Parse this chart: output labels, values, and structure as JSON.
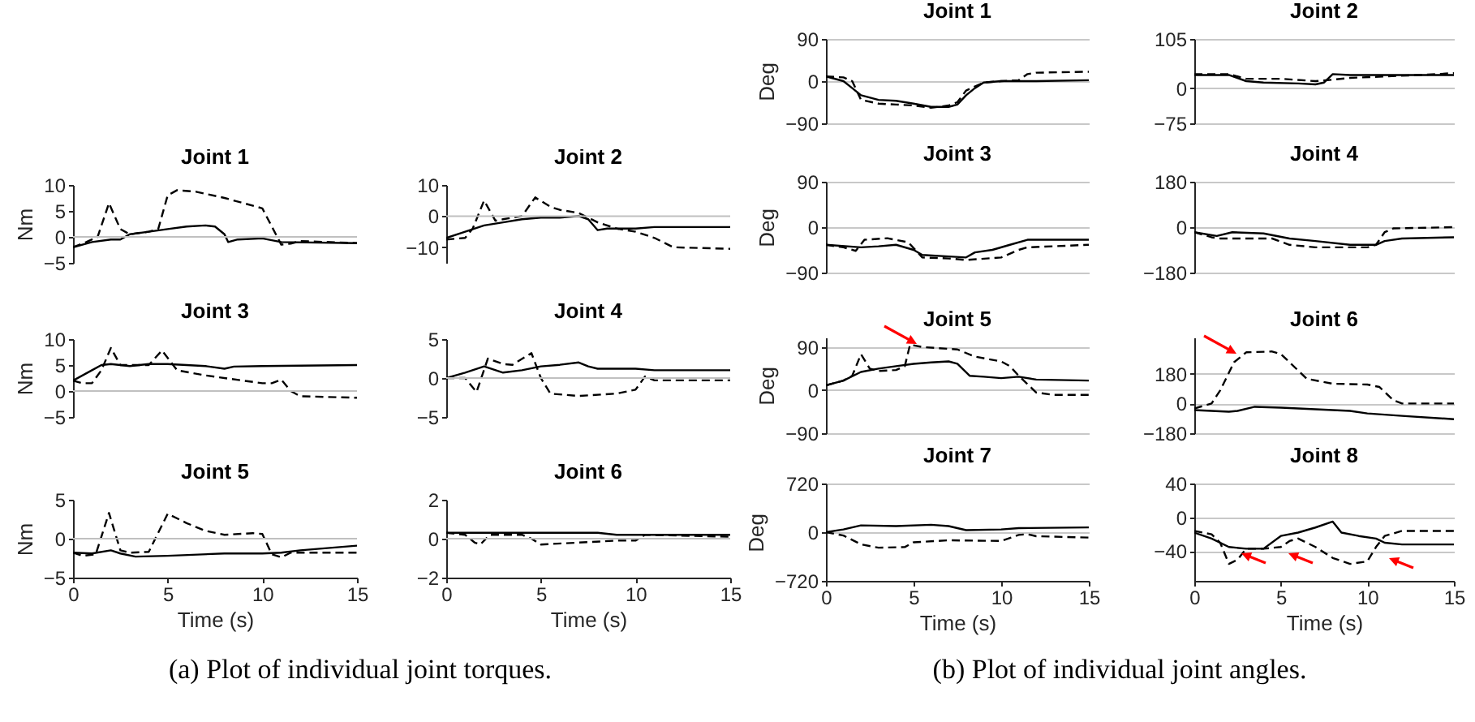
{
  "chart_data": [
    {
      "type": "line",
      "title": "Joint 1",
      "ylabel": "Nm",
      "xlim": [
        0,
        15
      ],
      "xticks": [
        0,
        5,
        10,
        15
      ],
      "ylim": [
        -5,
        10
      ],
      "yticks": [
        -5,
        0,
        5,
        10
      ],
      "tick_labels": "y",
      "ref_lines": [
        {
          "axis": "y",
          "value": 0,
          "color": "#c0c0c0"
        }
      ],
      "series": [
        {
          "color": "#000000",
          "line_style": "solid",
          "x": [
            0,
            1,
            2,
            2.5,
            3,
            4,
            5,
            6,
            7,
            7.5,
            8,
            8.2,
            8.7,
            10,
            11,
            15
          ],
          "values": [
            -2,
            -1,
            -0.5,
            -0.5,
            0.5,
            1,
            1.5,
            2,
            2.2,
            2,
            0.5,
            -1,
            -0.5,
            -0.3,
            -1,
            -1.2
          ]
        },
        {
          "color": "#000000",
          "line_style": "dashed",
          "x": [
            0,
            0.7,
            1.3,
            1.9,
            2.5,
            3,
            4,
            4.5,
            5,
            5.5,
            6.5,
            8,
            10,
            10.5,
            11,
            11.5,
            12,
            15
          ],
          "values": [
            -2,
            -1,
            0,
            6.5,
            1.5,
            0.5,
            1,
            1.5,
            8,
            9,
            8.7,
            7.5,
            5.5,
            2,
            -1.5,
            -1.3,
            -0.8,
            -1.2
          ]
        }
      ]
    },
    {
      "type": "line",
      "title": "Joint 2",
      "xlim": [
        0,
        15
      ],
      "xticks": [
        0,
        5,
        10,
        15
      ],
      "ylim": [
        -15,
        10
      ],
      "yticks": [
        -10,
        0,
        10
      ],
      "tick_labels": "y",
      "ref_lines": [
        {
          "axis": "y",
          "value": 0,
          "color": "#c0c0c0"
        }
      ],
      "series": [
        {
          "color": "#000000",
          "line_style": "solid",
          "x": [
            0,
            1,
            2,
            3,
            4,
            5,
            6,
            7,
            7.5,
            8,
            8.5,
            10,
            11,
            15
          ],
          "values": [
            -7,
            -5,
            -3,
            -2,
            -1,
            -0.5,
            -0.5,
            0,
            -1,
            -4.5,
            -4,
            -4,
            -3.5,
            -3.5
          ]
        },
        {
          "color": "#000000",
          "line_style": "dashed",
          "x": [
            0,
            1,
            1.4,
            2,
            2.6,
            3,
            4,
            4.7,
            5.5,
            6,
            7,
            8,
            9,
            10,
            11,
            12,
            15
          ],
          "values": [
            -7.5,
            -7,
            -4,
            5,
            -1.5,
            -1,
            0,
            6,
            3,
            2,
            1,
            -2,
            -4,
            -5,
            -7,
            -10,
            -10.5
          ]
        }
      ]
    },
    {
      "type": "line",
      "title": "Joint 3",
      "ylabel": "Nm",
      "xlim": [
        0,
        15
      ],
      "xticks": [
        0,
        5,
        10,
        15
      ],
      "ylim": [
        -5,
        10
      ],
      "yticks": [
        -5,
        0,
        5,
        10
      ],
      "tick_labels": "y",
      "ref_lines": [
        {
          "axis": "y",
          "value": 0,
          "color": "#c0c0c0"
        }
      ],
      "series": [
        {
          "color": "#000000",
          "line_style": "solid",
          "x": [
            0,
            1,
            1.5,
            2,
            3,
            4,
            5,
            6,
            7,
            8,
            8.5,
            10,
            15
          ],
          "values": [
            2,
            4,
            5,
            5.2,
            4.8,
            5.2,
            5.2,
            5,
            4.8,
            4.3,
            4.7,
            4.8,
            5
          ]
        },
        {
          "color": "#000000",
          "line_style": "dashed",
          "x": [
            0,
            0.5,
            1,
            1.5,
            2,
            2.5,
            3,
            4,
            4.7,
            5.5,
            7,
            9,
            10,
            10.5,
            11,
            11.5,
            12,
            15
          ],
          "values": [
            2,
            1.5,
            1.5,
            4,
            8.3,
            5,
            5,
            5,
            7.8,
            4,
            3,
            2,
            1.5,
            1.5,
            2.2,
            0,
            -1,
            -1.3
          ]
        }
      ]
    },
    {
      "type": "line",
      "title": "Joint 4",
      "xlim": [
        0,
        15
      ],
      "xticks": [
        0,
        5,
        10,
        15
      ],
      "ylim": [
        -5,
        5
      ],
      "yticks": [
        -5,
        0,
        5
      ],
      "tick_labels": "y",
      "ref_lines": [
        {
          "axis": "y",
          "value": 0,
          "color": "#c0c0c0"
        }
      ],
      "series": [
        {
          "color": "#000000",
          "line_style": "solid",
          "x": [
            0,
            1,
            2,
            3,
            4,
            5,
            6,
            7,
            7.5,
            8,
            10,
            11,
            15
          ],
          "values": [
            0,
            0.7,
            1.5,
            0.7,
            1,
            1.5,
            1.7,
            2,
            1.5,
            1.2,
            1.2,
            1,
            1
          ]
        },
        {
          "color": "#000000",
          "line_style": "dashed",
          "x": [
            0,
            1,
            1.6,
            2.2,
            3,
            3.5,
            4.5,
            5,
            5.5,
            7,
            9,
            10,
            10.5,
            11,
            15
          ],
          "values": [
            0,
            0,
            -1.8,
            2.5,
            1.8,
            1.7,
            3.2,
            0,
            -2,
            -2.3,
            -2,
            -1.5,
            0.2,
            -0.3,
            -0.3
          ]
        }
      ]
    },
    {
      "type": "line",
      "title": "Joint 5",
      "ylabel": "Nm",
      "xlabel": "Time (s)",
      "xlim": [
        0,
        15
      ],
      "xticks": [
        0,
        5,
        10,
        15
      ],
      "ylim": [
        -5,
        5
      ],
      "yticks": [
        -5,
        0,
        5
      ],
      "ref_lines": [
        {
          "axis": "y",
          "value": 0,
          "color": "#c0c0c0"
        }
      ],
      "annotations": [
        "(a) Plot of individual joint torques."
      ],
      "series": [
        {
          "color": "#000000",
          "line_style": "solid",
          "x": [
            0,
            1,
            2,
            2.5,
            3.3,
            5,
            8,
            10,
            11,
            12,
            15
          ],
          "values": [
            -1.8,
            -1.9,
            -1.5,
            -1.9,
            -2.3,
            -2.2,
            -1.9,
            -1.9,
            -1.8,
            -1.5,
            -0.9
          ]
        },
        {
          "color": "#000000",
          "line_style": "dashed",
          "x": [
            0,
            0.5,
            1.2,
            1.9,
            2.5,
            3,
            4,
            5,
            6,
            7,
            8,
            9.5,
            10,
            10.5,
            11,
            11.5,
            15
          ],
          "values": [
            -1.8,
            -2.2,
            -2,
            3.3,
            -1.5,
            -1.8,
            -1.7,
            3.2,
            2,
            1,
            0.5,
            0.7,
            0.6,
            -2,
            -2.4,
            -1.8,
            -1.8
          ]
        }
      ]
    },
    {
      "type": "line",
      "title": "Joint 6",
      "xlabel": "Time (s)",
      "xlim": [
        0,
        15
      ],
      "xticks": [
        0,
        5,
        10,
        15
      ],
      "ylim": [
        -2,
        2
      ],
      "yticks": [
        -2,
        0,
        2
      ],
      "ref_lines": [
        {
          "axis": "y",
          "value": 0,
          "color": "#c0c0c0"
        }
      ],
      "series": [
        {
          "color": "#000000",
          "line_style": "solid",
          "x": [
            0,
            5,
            8,
            9,
            15
          ],
          "values": [
            0.3,
            0.3,
            0.3,
            0.2,
            0.2
          ]
        },
        {
          "color": "#000000",
          "line_style": "dashed",
          "x": [
            0,
            1,
            1.5,
            1.8,
            2.3,
            4,
            4.5,
            5,
            7,
            9,
            10,
            10.5,
            15
          ],
          "values": [
            0.3,
            0.2,
            -0.2,
            -0.3,
            0.2,
            0.2,
            0,
            -0.3,
            -0.2,
            -0.1,
            -0.1,
            0.2,
            0.1
          ]
        }
      ]
    },
    {
      "type": "line",
      "title": "Joint 1",
      "ylabel": "Deg",
      "xlim": [
        0,
        15
      ],
      "xticks": [
        0,
        5,
        10,
        15
      ],
      "ylim": [
        -90,
        90
      ],
      "yticks": [
        -90,
        0,
        90
      ],
      "tick_labels": "y",
      "grid": "y",
      "series": [
        {
          "color": "#000000",
          "line_style": "solid",
          "x": [
            0,
            1,
            1.5,
            2,
            3,
            4,
            5,
            6,
            7,
            7.5,
            8,
            8.5,
            9,
            10,
            12,
            15
          ],
          "values": [
            10,
            0,
            -15,
            -30,
            -40,
            -42,
            -48,
            -55,
            -55,
            -50,
            -30,
            -15,
            -3,
            0,
            0,
            2
          ]
        },
        {
          "color": "#000000",
          "line_style": "dashed",
          "x": [
            0,
            1,
            1.5,
            2,
            3,
            4,
            5,
            6,
            7,
            7.5,
            8,
            9,
            10,
            11,
            11.5,
            12,
            15
          ],
          "values": [
            10,
            8,
            0,
            -40,
            -48,
            -50,
            -52,
            -57,
            -52,
            -45,
            -20,
            -3,
            0,
            2,
            15,
            18,
            20
          ]
        }
      ]
    },
    {
      "type": "line",
      "title": "Joint 2",
      "xlim": [
        0,
        15
      ],
      "xticks": [
        0,
        5,
        10,
        15
      ],
      "ylim": [
        -75,
        105
      ],
      "yticks": [
        -75,
        0,
        105
      ],
      "tick_labels": "y",
      "grid": "y",
      "series": [
        {
          "color": "#000000",
          "line_style": "solid",
          "x": [
            0,
            2,
            3,
            4,
            6,
            7,
            7.5,
            8,
            9,
            11,
            15
          ],
          "values": [
            28,
            28,
            15,
            12,
            10,
            8,
            12,
            30,
            28,
            28,
            28
          ]
        },
        {
          "color": "#000000",
          "line_style": "dashed",
          "x": [
            0,
            2,
            3,
            5,
            7,
            8,
            9,
            11,
            13,
            15
          ],
          "values": [
            30,
            30,
            20,
            20,
            15,
            18,
            22,
            25,
            28,
            32
          ]
        }
      ]
    },
    {
      "type": "line",
      "title": "Joint 3",
      "ylabel": "Deg",
      "xlim": [
        0,
        15
      ],
      "xticks": [
        0,
        5,
        10,
        15
      ],
      "ylim": [
        -90,
        90
      ],
      "yticks": [
        -90,
        0,
        90
      ],
      "tick_labels": "y",
      "grid": "y",
      "series": [
        {
          "color": "#000000",
          "line_style": "solid",
          "x": [
            0,
            2,
            3,
            4,
            5,
            5.5,
            7,
            8,
            8.5,
            9.5,
            10.5,
            11.5,
            15
          ],
          "values": [
            -35,
            -40,
            -38,
            -35,
            -45,
            -55,
            -58,
            -60,
            -50,
            -45,
            -35,
            -25,
            -25
          ]
        },
        {
          "color": "#000000",
          "line_style": "dashed",
          "x": [
            0,
            1,
            1.7,
            2.2,
            3.5,
            4.7,
            5.5,
            7,
            8,
            10,
            11,
            11.5,
            15
          ],
          "values": [
            -35,
            -40,
            -47,
            -25,
            -22,
            -30,
            -60,
            -62,
            -65,
            -60,
            -45,
            -40,
            -35
          ]
        }
      ]
    },
    {
      "type": "line",
      "title": "Joint 4",
      "xlim": [
        0,
        15
      ],
      "xticks": [
        0,
        5,
        10,
        15
      ],
      "ylim": [
        -180,
        180
      ],
      "yticks": [
        -180,
        0,
        180
      ],
      "tick_labels": "y",
      "grid": "y",
      "series": [
        {
          "color": "#000000",
          "line_style": "solid",
          "x": [
            0,
            1.3,
            2.2,
            4,
            5.5,
            7,
            9,
            10.5,
            11,
            12,
            15
          ],
          "values": [
            -20,
            -35,
            -20,
            -25,
            -45,
            -55,
            -70,
            -70,
            -55,
            -45,
            -40
          ]
        },
        {
          "color": "#000000",
          "line_style": "dashed",
          "x": [
            0,
            1,
            1.5,
            4.5,
            5.5,
            7,
            10,
            10.5,
            11,
            11.5,
            15
          ],
          "values": [
            -20,
            -40,
            -45,
            -45,
            -70,
            -80,
            -80,
            -70,
            -20,
            -5,
            0
          ]
        }
      ]
    },
    {
      "type": "line",
      "title": "Joint 5",
      "ylabel": "Deg",
      "xlim": [
        0,
        15
      ],
      "xticks": [
        0,
        5,
        10,
        15
      ],
      "ylim": [
        -90,
        110
      ],
      "yticks": [
        -90,
        0,
        90
      ],
      "tick_labels": "y",
      "grid": "y",
      "series": [
        {
          "color": "#000000",
          "line_style": "solid",
          "x": [
            0,
            1,
            2,
            3,
            4,
            5,
            6,
            7,
            7.5,
            8.2,
            9,
            10,
            11,
            12,
            15
          ],
          "values": [
            10,
            20,
            38,
            45,
            50,
            55,
            58,
            60,
            55,
            30,
            28,
            25,
            28,
            22,
            20
          ]
        },
        {
          "color": "#000000",
          "line_style": "dashed",
          "x": [
            0,
            1,
            1.5,
            2,
            2.5,
            3,
            4,
            4.5,
            4.8,
            5.5,
            7.5,
            8.5,
            10,
            10.5,
            11,
            12,
            13,
            15
          ],
          "values": [
            10,
            20,
            30,
            75,
            45,
            40,
            42,
            50,
            95,
            90,
            85,
            70,
            60,
            50,
            30,
            -5,
            -10,
            -10
          ]
        }
      ]
    },
    {
      "type": "line",
      "title": "Joint 6",
      "xlim": [
        0,
        15
      ],
      "xticks": [
        0,
        5,
        10,
        15
      ],
      "ylim": [
        -180,
        400
      ],
      "yticks": [
        -180,
        0,
        180
      ],
      "tick_labels": "y",
      "grid": "y",
      "series": [
        {
          "color": "#000000",
          "line_style": "solid",
          "x": [
            0,
            2,
            2.5,
            3.5,
            5,
            8,
            9,
            10,
            12,
            15
          ],
          "values": [
            -40,
            -50,
            -45,
            -20,
            -25,
            -40,
            -45,
            -60,
            -75,
            -95
          ]
        },
        {
          "color": "#000000",
          "line_style": "dashed",
          "x": [
            0,
            1,
            1.5,
            2.3,
            3,
            4.5,
            5,
            5.5,
            6.5,
            8,
            10,
            10.7,
            11.5,
            12,
            15
          ],
          "values": [
            -30,
            0,
            80,
            250,
            310,
            315,
            300,
            250,
            150,
            120,
            115,
            100,
            20,
            0,
            0
          ]
        }
      ]
    },
    {
      "type": "line",
      "title": "Joint 7",
      "ylabel": "Deg",
      "xlabel": "Time (s)",
      "xlim": [
        0,
        15
      ],
      "xticks": [
        0,
        5,
        10,
        15
      ],
      "ylim": [
        -720,
        720
      ],
      "yticks": [
        -720,
        0,
        720
      ],
      "grid": "y",
      "annotations": [
        "(b) Plot of individual joint angles."
      ],
      "series": [
        {
          "color": "#000000",
          "line_style": "solid",
          "x": [
            0,
            1,
            2,
            4,
            6,
            7,
            8,
            10,
            11,
            15
          ],
          "values": [
            0,
            40,
            100,
            90,
            110,
            90,
            30,
            40,
            60,
            70
          ]
        },
        {
          "color": "#000000",
          "line_style": "dashed",
          "x": [
            0,
            1,
            2,
            3,
            4.5,
            5,
            7,
            10,
            11,
            11.5,
            12,
            15
          ],
          "values": [
            0,
            -50,
            -180,
            -230,
            -220,
            -150,
            -120,
            -130,
            -40,
            -30,
            -60,
            -80
          ]
        }
      ]
    },
    {
      "type": "line",
      "title": "Joint 8",
      "xlabel": "Time (s)",
      "xlim": [
        0,
        15
      ],
      "xticks": [
        0,
        5,
        10,
        15
      ],
      "ylim": [
        -75,
        40
      ],
      "yticks": [
        -40,
        0,
        40
      ],
      "grid": "y",
      "series": [
        {
          "color": "#000000",
          "line_style": "solid",
          "x": [
            0,
            1,
            2,
            3,
            4,
            5,
            6,
            7,
            8,
            8.5,
            9.5,
            10.5,
            11,
            12,
            15
          ],
          "values": [
            -18,
            -25,
            -35,
            -37,
            -37,
            -22,
            -18,
            -12,
            -5,
            -18,
            -22,
            -25,
            -30,
            -32,
            -32
          ]
        },
        {
          "color": "#000000",
          "line_style": "dashed",
          "x": [
            0,
            1,
            1.5,
            2,
            2.5,
            3,
            4,
            5,
            5.5,
            6,
            7,
            8,
            9,
            10,
            10.5,
            11,
            12,
            15
          ],
          "values": [
            -16,
            -20,
            -30,
            -55,
            -50,
            -37,
            -37,
            -35,
            -28,
            -25,
            -35,
            -48,
            -55,
            -52,
            -35,
            -22,
            -16,
            -16
          ]
        }
      ]
    }
  ]
}
